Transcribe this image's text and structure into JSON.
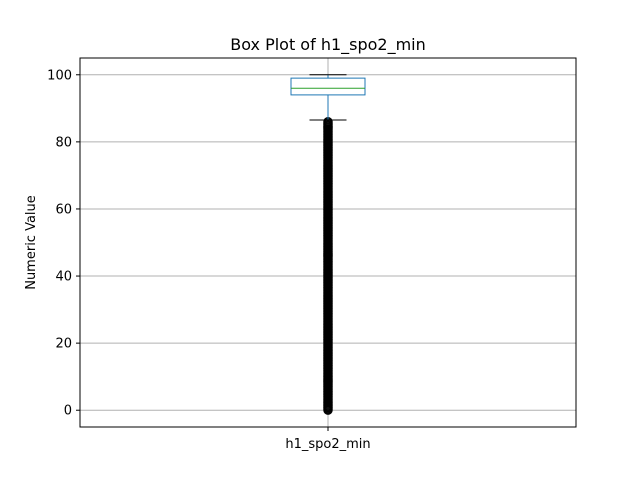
{
  "chart_data": {
    "type": "box",
    "title": "Box Plot of h1_spo2_min",
    "xlabel": "",
    "ylabel": "Numeric Value",
    "categories": [
      "h1_spo2_min"
    ],
    "ylim": [
      -5,
      105
    ],
    "yticks": [
      0,
      20,
      40,
      60,
      80,
      100
    ],
    "grid": true,
    "box": {
      "whisker_low": 86.5,
      "q1": 94,
      "median": 96,
      "q3": 99,
      "whisker_high": 100
    },
    "outlier_range": [
      0,
      86
    ],
    "colors": {
      "box": "#1f77b4",
      "median": "#2ca02c",
      "whisker": "#1f77b4",
      "cap": "#000000",
      "outlier": "#000000",
      "grid": "#b0b0b0"
    }
  }
}
